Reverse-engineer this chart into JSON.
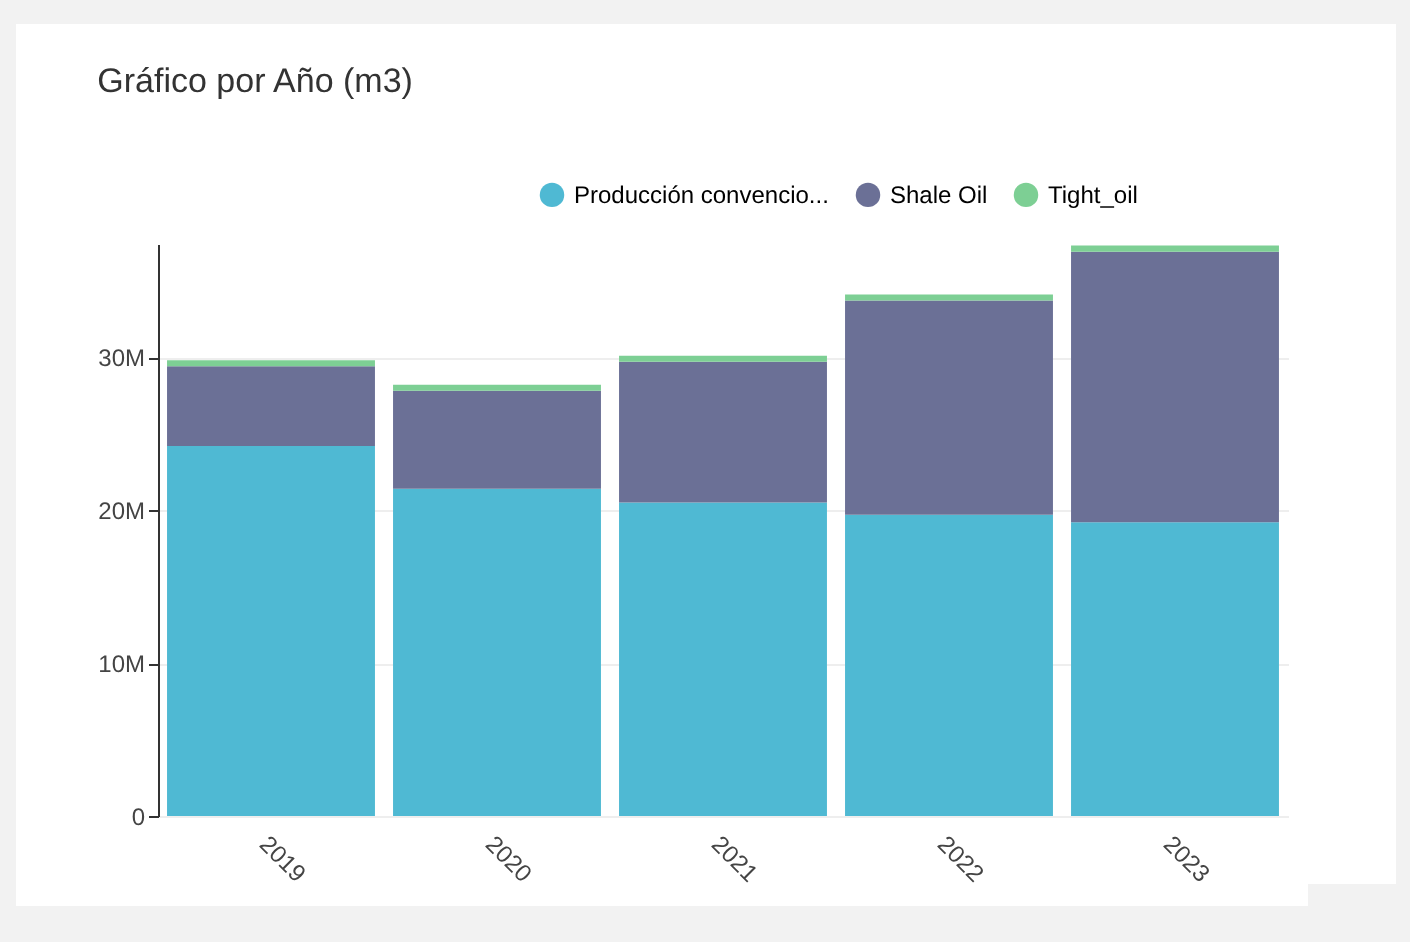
{
  "chart_data": {
    "type": "bar",
    "title": "Gráfico por Año (m3)",
    "stacked": true,
    "categories": [
      "2019",
      "2020",
      "2021",
      "2022",
      "2023"
    ],
    "series": [
      {
        "name": "Producción convencio...",
        "color": "#4fb9d3",
        "values": [
          24200000,
          21400000,
          20500000,
          19700000,
          19200000
        ]
      },
      {
        "name": "Shale Oil",
        "color": "#6b7096",
        "values": [
          5200000,
          6400000,
          9200000,
          14000000,
          17700000
        ]
      },
      {
        "name": "Tight_oil",
        "color": "#7dcf94",
        "values": [
          400000,
          400000,
          400000,
          400000,
          400000
        ]
      }
    ],
    "ylim": [
      0,
      37400000
    ],
    "yticks": [
      0,
      {
        "value": 10000000,
        "label": "10M"
      },
      {
        "value": 20000000,
        "label": "20M"
      },
      {
        "value": 30000000,
        "label": "30M"
      }
    ],
    "grid": "y",
    "legend": "top right"
  }
}
